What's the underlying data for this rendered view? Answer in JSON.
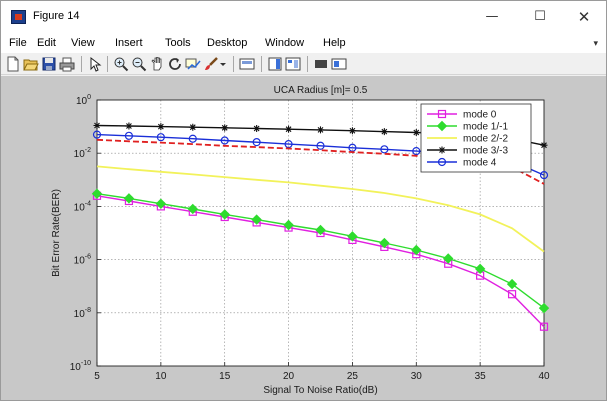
{
  "window": {
    "title": "Figure 14",
    "icon": "matlab-figure-icon",
    "controls": {
      "minimize": "—",
      "maximize": "☐",
      "close": "✕"
    }
  },
  "menu": {
    "items": [
      "File",
      "Edit",
      "View",
      "Insert",
      "Tools",
      "Desktop",
      "Window",
      "Help"
    ],
    "overflow_glyph": "▾"
  },
  "toolbar": {
    "icons": [
      "new-figure-icon",
      "open-file-icon",
      "save-icon",
      "print-icon",
      "select-arrow-icon",
      "zoom-in-icon",
      "zoom-out-icon",
      "pan-icon",
      "rotate-3d-icon",
      "data-cursor-icon",
      "brush-icon",
      "brush-dropdown-icon",
      "link-plot-icon",
      "colorbar-icon",
      "legend-icon",
      "hide-plot-tools-icon",
      "show-plot-tools-icon"
    ]
  },
  "chart_data": {
    "type": "line",
    "title": "UCA Radius [m]= 0.5",
    "xlabel": "Signal To Noise Ratio(dB)",
    "ylabel": "Bit Error Rate(BER)",
    "xlim": [
      5,
      40
    ],
    "ylim": [
      1e-10,
      1
    ],
    "yscale": "log",
    "grid": true,
    "legend_position": "top-right",
    "x_ticks": [
      5,
      10,
      15,
      20,
      25,
      30,
      35,
      40
    ],
    "x_tick_labels": [
      "5",
      "10",
      "15",
      "20",
      "25",
      "30",
      "35",
      "40"
    ],
    "y_ticks": [
      1,
      0.01,
      0.0001,
      1e-06,
      1e-08,
      1e-10
    ],
    "y_tick_base": "10",
    "y_tick_exponents": [
      "0",
      "-2",
      "-4",
      "-6",
      "-8",
      "-10"
    ],
    "x": [
      5,
      7.5,
      10,
      12.5,
      15,
      17.5,
      20,
      22.5,
      25,
      27.5,
      30,
      32.5,
      35,
      37.5,
      40
    ],
    "series": [
      {
        "name": "mode 0",
        "color": "#e020e0",
        "marker": "square",
        "dash": "solid",
        "values": [
          0.00025,
          0.00016,
          0.0001,
          6.3e-05,
          4e-05,
          2.5e-05,
          1.6e-05,
          1e-05,
          5.5e-06,
          3e-06,
          1.6e-06,
          7e-07,
          2.5e-07,
          5e-08,
          3e-09
        ]
      },
      {
        "name": "mode 1/-1",
        "color": "#2edc2e",
        "marker": "diamond",
        "dash": "solid",
        "values": [
          0.0003,
          0.0002,
          0.000126,
          8e-05,
          5e-05,
          3.2e-05,
          2e-05,
          1.3e-05,
          7.5e-06,
          4.2e-06,
          2.3e-06,
          1.1e-06,
          4.5e-07,
          1.2e-07,
          1.5e-08
        ]
      },
      {
        "name": "mode 2/-2",
        "color": "#f2f25a",
        "marker": "none",
        "dash": "solid",
        "values": [
          0.0032,
          0.0025,
          0.002,
          0.0016,
          0.00126,
          0.001,
          0.0008,
          0.0006,
          0.00045,
          0.00032,
          0.0002,
          0.00011,
          5e-05,
          1.5e-05,
          2e-06
        ]
      },
      {
        "name": "mode 3/-3",
        "color": "#101010",
        "marker": "star",
        "dash": "solid",
        "values": [
          0.11,
          0.105,
          0.1,
          0.095,
          0.09,
          0.085,
          0.08,
          0.075,
          0.07,
          0.065,
          0.06,
          0.055,
          0.045,
          0.035,
          0.02
        ]
      },
      {
        "name": "mode 4",
        "color": "#1a2fd8",
        "marker": "circle",
        "dash": "solid",
        "values": [
          0.05,
          0.045,
          0.04,
          0.035,
          0.03,
          0.026,
          0.022,
          0.019,
          0.016,
          0.014,
          0.012,
          0.01,
          0.008,
          0.005,
          0.0015
        ]
      },
      {
        "name": "",
        "color": "#e02020",
        "marker": "none",
        "dash": "dashed",
        "values": [
          0.032,
          0.028,
          0.025,
          0.022,
          0.019,
          0.017,
          0.015,
          0.013,
          0.011,
          0.0095,
          0.008,
          0.0065,
          0.005,
          0.003,
          0.0007
        ]
      }
    ]
  }
}
